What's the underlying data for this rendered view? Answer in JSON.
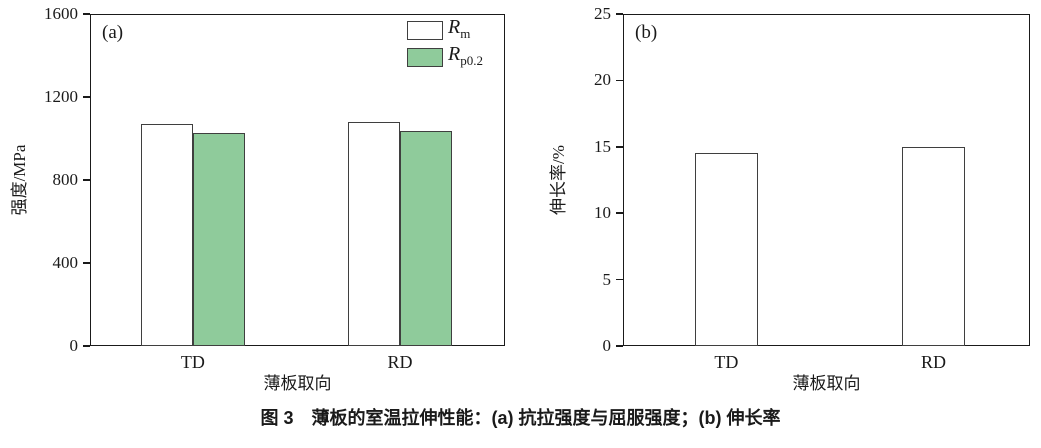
{
  "caption": "图 3　薄板的室温拉伸性能：(a) 抗拉强度与屈服强度；(b) 伸长率",
  "colors": {
    "background": "#ffffff",
    "axis": "#1a1a1a",
    "text": "#1a1a1a",
    "bar_border": "#3f3f3f",
    "bar_white": "#ffffff",
    "bar_green": "#8fcb9b"
  },
  "chart_data": [
    {
      "type": "bar",
      "panel_label": "(a)",
      "xlabel": "薄板取向",
      "ylabel": "强度/MPa",
      "ylim": [
        0,
        1600
      ],
      "yticks": [
        0,
        400,
        800,
        1200,
        1600
      ],
      "grid": false,
      "categories": [
        "TD",
        "RD"
      ],
      "series": [
        {
          "name": "Rm",
          "fill": "#ffffff",
          "values": [
            1070,
            1080
          ]
        },
        {
          "name": "Rp0.2",
          "fill": "#8fcb9b",
          "values": [
            1025,
            1035
          ]
        }
      ],
      "legend": {
        "position": "top-right",
        "items": [
          {
            "symbol": "R",
            "subscript": "m",
            "fill": "#ffffff"
          },
          {
            "symbol": "R",
            "subscript": "p0.2",
            "fill": "#8fcb9b"
          }
        ]
      }
    },
    {
      "type": "bar",
      "panel_label": "(b)",
      "xlabel": "薄板取向",
      "ylabel": "伸长率/%",
      "ylim": [
        0,
        25
      ],
      "yticks": [
        0,
        5,
        10,
        15,
        20,
        25
      ],
      "grid": false,
      "categories": [
        "TD",
        "RD"
      ],
      "series": [
        {
          "name": "elongation",
          "fill": "#ffffff",
          "values": [
            14.5,
            15.0
          ]
        }
      ],
      "legend": null
    }
  ]
}
